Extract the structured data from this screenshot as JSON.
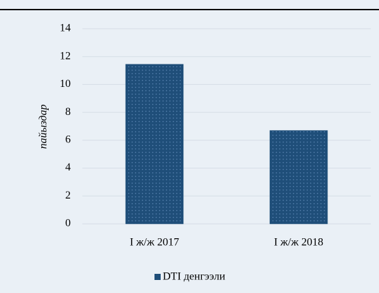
{
  "chart_data": {
    "type": "bar",
    "ylabel": "пайыздар",
    "categories": [
      "I ж/ж 2017",
      "I ж/ж 2018"
    ],
    "series": [
      {
        "name": "DTI денгээли",
        "color": "#1f4e79",
        "values": [
          11.45,
          6.7
        ]
      }
    ],
    "ylim": [
      0,
      14
    ],
    "yticks": [
      0,
      2,
      4,
      6,
      8,
      10,
      12,
      14
    ],
    "grid": true,
    "legend": "bottom"
  }
}
